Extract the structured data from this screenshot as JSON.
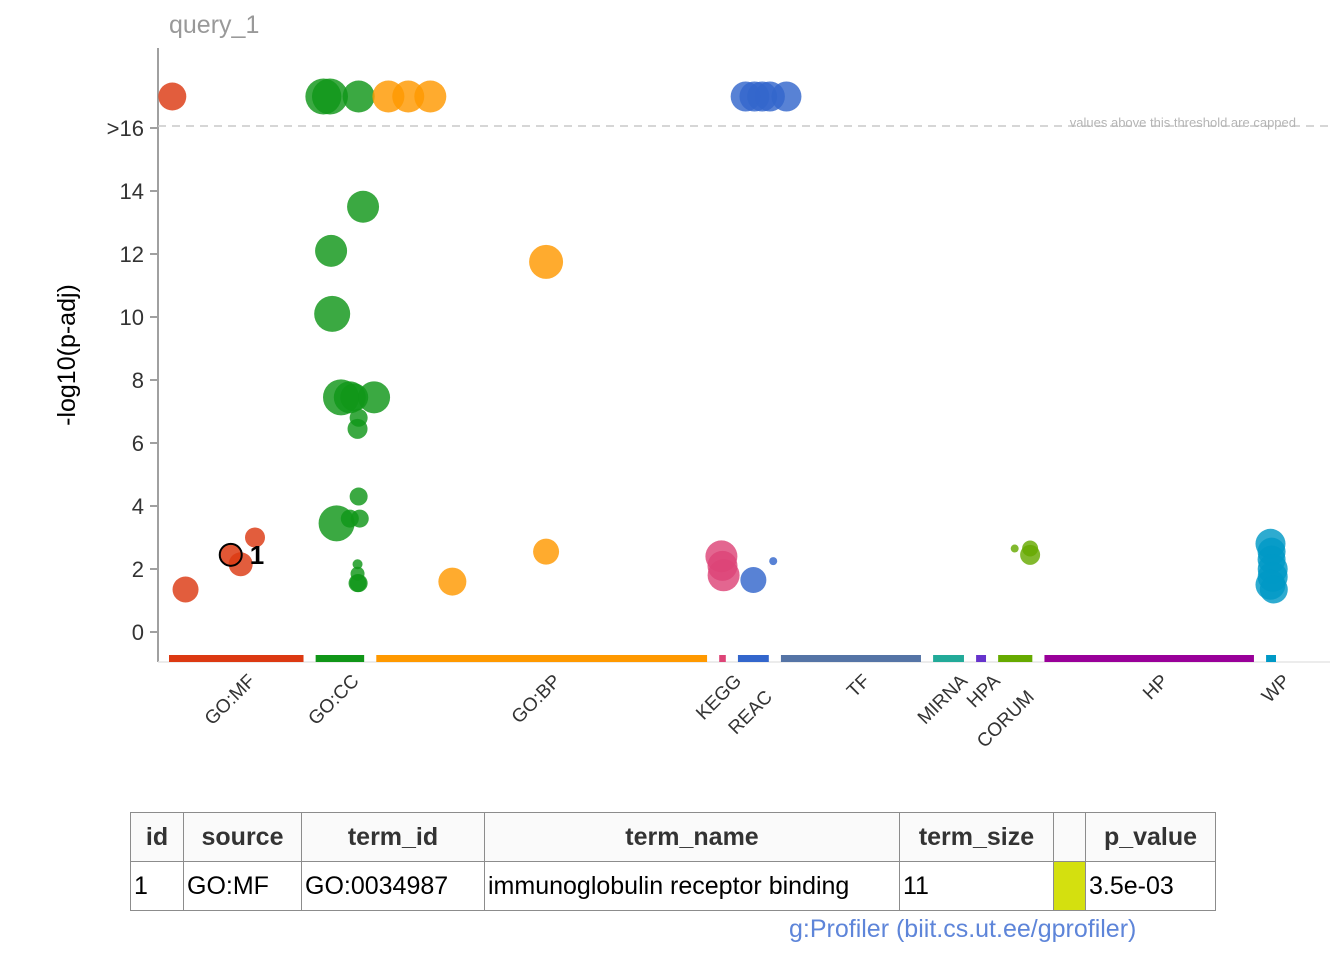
{
  "chart_data": {
    "type": "scatter",
    "title": "query_1",
    "xlabel": "",
    "ylabel": "-log10(p-adj)",
    "ylim": [
      -1,
      19
    ],
    "yticks": [
      0,
      2,
      4,
      6,
      8,
      10,
      12,
      14,
      16
    ],
    "ytick_labels": [
      "0",
      "2",
      "4",
      "6",
      "8",
      "10",
      "12",
      "14",
      ">16"
    ],
    "cap_threshold": 16,
    "cap_note": "values above this threshold are capped",
    "grid": false,
    "sources": [
      {
        "name": "GO:MF",
        "color": "#dc3912",
        "start": 0,
        "end": 122
      },
      {
        "name": "GO:CC",
        "color": "#109618",
        "start": 133,
        "end": 177
      },
      {
        "name": "GO:BP",
        "color": "#ff9900",
        "start": 188,
        "end": 488
      },
      {
        "name": "KEGG",
        "color": "#dd4477",
        "start": 499,
        "end": 505
      },
      {
        "name": "REAC",
        "color": "#3366cc",
        "start": 516,
        "end": 544
      },
      {
        "name": "TF",
        "color": "#5574a6",
        "start": 555,
        "end": 682
      },
      {
        "name": "MIRNA",
        "color": "#22aa99",
        "start": 693,
        "end": 721
      },
      {
        "name": "HPA",
        "color": "#6633cc",
        "start": 732,
        "end": 741
      },
      {
        "name": "CORUM",
        "color": "#66aa00",
        "start": 752,
        "end": 783
      },
      {
        "name": "HP",
        "color": "#990099",
        "start": 794,
        "end": 984
      },
      {
        "name": "WP",
        "color": "#0099c6",
        "start": 995,
        "end": 1004
      }
    ],
    "points": [
      {
        "source": "GO:MF",
        "x": 3,
        "y": 17.0,
        "size": 14
      },
      {
        "source": "GO:MF",
        "x": 15,
        "y": 1.35,
        "size": 13
      },
      {
        "source": "GO:MF",
        "x": 65,
        "y": 2.15,
        "size": 12
      },
      {
        "source": "GO:MF",
        "x": 78,
        "y": 3.0,
        "size": 10
      },
      {
        "source": "GO:MF",
        "x": 56,
        "y": 2.45,
        "size": 11,
        "highlight": true,
        "label": "1"
      },
      {
        "source": "GO:CC",
        "x": 140,
        "y": 17.0,
        "size": 18
      },
      {
        "source": "GO:CC",
        "x": 146,
        "y": 17.0,
        "size": 18
      },
      {
        "source": "GO:CC",
        "x": 172,
        "y": 17.0,
        "size": 16
      },
      {
        "source": "GO:CC",
        "x": 176,
        "y": 13.5,
        "size": 16
      },
      {
        "source": "GO:CC",
        "x": 147,
        "y": 12.1,
        "size": 16
      },
      {
        "source": "GO:CC",
        "x": 148,
        "y": 10.1,
        "size": 18
      },
      {
        "source": "GO:CC",
        "x": 156,
        "y": 7.45,
        "size": 18
      },
      {
        "source": "GO:CC",
        "x": 164,
        "y": 7.45,
        "size": 16
      },
      {
        "source": "GO:CC",
        "x": 168,
        "y": 7.45,
        "size": 14
      },
      {
        "source": "GO:CC",
        "x": 186,
        "y": 7.45,
        "size": 16
      },
      {
        "source": "GO:CC",
        "x": 172,
        "y": 6.8,
        "size": 9
      },
      {
        "source": "GO:CC",
        "x": 171,
        "y": 6.45,
        "size": 10
      },
      {
        "source": "GO:CC",
        "x": 172,
        "y": 4.3,
        "size": 9
      },
      {
        "source": "GO:CC",
        "x": 152,
        "y": 3.45,
        "size": 18
      },
      {
        "source": "GO:CC",
        "x": 164,
        "y": 3.6,
        "size": 9
      },
      {
        "source": "GO:CC",
        "x": 173,
        "y": 3.6,
        "size": 9
      },
      {
        "source": "GO:CC",
        "x": 171,
        "y": 2.15,
        "size": 5
      },
      {
        "source": "GO:CC",
        "x": 171,
        "y": 1.85,
        "size": 7
      },
      {
        "source": "GO:CC",
        "x": 172,
        "y": 1.55,
        "size": 9
      },
      {
        "source": "GO:CC",
        "x": 171,
        "y": 1.55,
        "size": 9
      },
      {
        "source": "GO:BP",
        "x": 199,
        "y": 17.0,
        "size": 16
      },
      {
        "source": "GO:BP",
        "x": 217,
        "y": 17.0,
        "size": 16
      },
      {
        "source": "GO:BP",
        "x": 237,
        "y": 17.0,
        "size": 16
      },
      {
        "source": "GO:BP",
        "x": 342,
        "y": 11.75,
        "size": 17
      },
      {
        "source": "GO:BP",
        "x": 342,
        "y": 2.55,
        "size": 13
      },
      {
        "source": "GO:BP",
        "x": 257,
        "y": 1.6,
        "size": 14
      },
      {
        "source": "KEGG",
        "x": 501,
        "y": 2.4,
        "size": 16
      },
      {
        "source": "KEGG",
        "x": 502,
        "y": 2.1,
        "size": 15
      },
      {
        "source": "KEGG",
        "x": 503,
        "y": 1.8,
        "size": 16
      },
      {
        "source": "REAC",
        "x": 523,
        "y": 17.0,
        "size": 15
      },
      {
        "source": "REAC",
        "x": 531,
        "y": 17.0,
        "size": 15
      },
      {
        "source": "REAC",
        "x": 538,
        "y": 17.0,
        "size": 15
      },
      {
        "source": "REAC",
        "x": 545,
        "y": 17.0,
        "size": 15
      },
      {
        "source": "REAC",
        "x": 560,
        "y": 17.0,
        "size": 15
      },
      {
        "source": "REAC",
        "x": 530,
        "y": 1.65,
        "size": 13
      },
      {
        "source": "REAC",
        "x": 548,
        "y": 2.25,
        "size": 4
      },
      {
        "source": "CORUM",
        "x": 767,
        "y": 2.65,
        "size": 4
      },
      {
        "source": "CORUM",
        "x": 781,
        "y": 2.65,
        "size": 8
      },
      {
        "source": "CORUM",
        "x": 781,
        "y": 2.45,
        "size": 10
      },
      {
        "source": "WP",
        "x": 999,
        "y": 2.8,
        "size": 15
      },
      {
        "source": "WP",
        "x": 1000,
        "y": 2.55,
        "size": 14
      },
      {
        "source": "WP",
        "x": 1000,
        "y": 2.3,
        "size": 14
      },
      {
        "source": "WP",
        "x": 1001,
        "y": 2.0,
        "size": 15
      },
      {
        "source": "WP",
        "x": 1001,
        "y": 1.75,
        "size": 15
      },
      {
        "source": "WP",
        "x": 999,
        "y": 1.5,
        "size": 15
      },
      {
        "source": "WP",
        "x": 1002,
        "y": 1.35,
        "size": 14
      }
    ],
    "table": {
      "columns": [
        "id",
        "source",
        "term_id",
        "term_name",
        "term_size",
        "",
        "p_value"
      ],
      "rows": [
        {
          "id": "1",
          "source": "GO:MF",
          "term_id": "GO:0034987",
          "term_name": "immunoglobulin receptor binding",
          "term_size": "11",
          "swatch_color": "#d4e00f",
          "p_value": "3.5e-03"
        }
      ]
    }
  },
  "footer": {
    "link_text": "g:Profiler (biit.cs.ut.ee/gprofiler)"
  }
}
